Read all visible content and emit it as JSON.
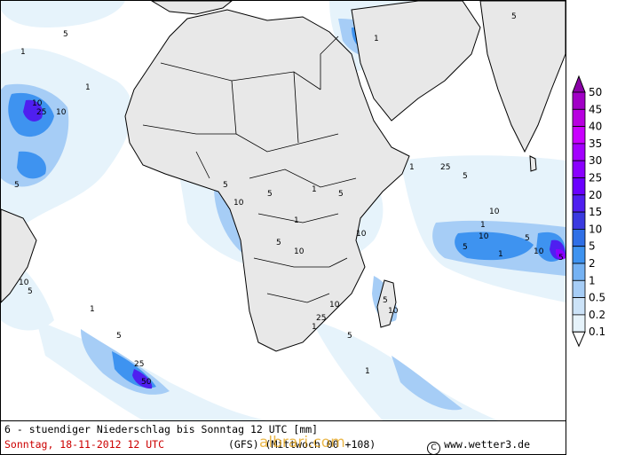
{
  "title": "6 - stuendiger Niederschlag bis Sonntag 12 UTC [mm]",
  "valid_time": "Sonntag, 18-11-2012  12 UTC",
  "model_info": "(GFS)   (Mittwoch 00 +108)",
  "credit": "www.wetter3.de",
  "copyright_symbol": "C",
  "watermark": "albrari.com",
  "legend": {
    "levels": [
      "50",
      "45",
      "40",
      "35",
      "30",
      "25",
      "20",
      "15",
      "10",
      "5",
      "2",
      "1",
      "0.5",
      "0.2",
      "0.1"
    ],
    "colors": [
      "#8b00a8",
      "#a100c6",
      "#b800e0",
      "#c900ff",
      "#a300ff",
      "#8a00ff",
      "#6a00ff",
      "#4f1ff0",
      "#3a3ae0",
      "#2f6fe6",
      "#3e93f0",
      "#75b2f3",
      "#a6cdf6",
      "#cce3f8",
      "#e6f3fb"
    ]
  },
  "map": {
    "land_color": "#e8e8e8",
    "ocean_color": "#ffffff",
    "border_color": "#000000",
    "precip_labels": [
      {
        "text": "1",
        "level": "1"
      },
      {
        "text": "5",
        "level": "5"
      },
      {
        "text": "10",
        "level": "10"
      },
      {
        "text": "25",
        "level": "25"
      },
      {
        "text": "10",
        "level": "10"
      },
      {
        "text": "5",
        "level": "5"
      },
      {
        "text": "1",
        "level": "1"
      },
      {
        "text": "5",
        "level": "5"
      },
      {
        "text": "10",
        "level": "10"
      },
      {
        "text": "5",
        "level": "5"
      },
      {
        "text": "1",
        "level": "1"
      },
      {
        "text": "5",
        "level": "5"
      },
      {
        "text": "10",
        "level": "10"
      },
      {
        "text": "1",
        "level": "1"
      },
      {
        "text": "5",
        "level": "5"
      },
      {
        "text": "10",
        "level": "10"
      },
      {
        "text": "5",
        "level": "5"
      },
      {
        "text": "1",
        "level": "1"
      },
      {
        "text": "5",
        "level": "5"
      },
      {
        "text": "10",
        "level": "10"
      },
      {
        "text": "25",
        "level": "25"
      },
      {
        "text": "50",
        "level": "50"
      },
      {
        "text": "5",
        "level": "5"
      },
      {
        "text": "1",
        "level": "1"
      },
      {
        "text": "10",
        "level": "10"
      },
      {
        "text": "5",
        "level": "5"
      },
      {
        "text": "1",
        "level": "1"
      },
      {
        "text": "25",
        "level": "25"
      },
      {
        "text": "10",
        "level": "10"
      },
      {
        "text": "5",
        "level": "5"
      },
      {
        "text": "1",
        "level": "1"
      },
      {
        "text": "5",
        "level": "5"
      },
      {
        "text": "10",
        "level": "10"
      },
      {
        "text": "1",
        "level": "1"
      },
      {
        "text": "25",
        "level": "25"
      },
      {
        "text": "5",
        "level": "5"
      },
      {
        "text": "10",
        "level": "10"
      },
      {
        "text": "1",
        "level": "1"
      },
      {
        "text": "5",
        "level": "5"
      },
      {
        "text": "10",
        "level": "10"
      },
      {
        "text": "1",
        "level": "1"
      },
      {
        "text": "5",
        "level": "5"
      }
    ]
  }
}
